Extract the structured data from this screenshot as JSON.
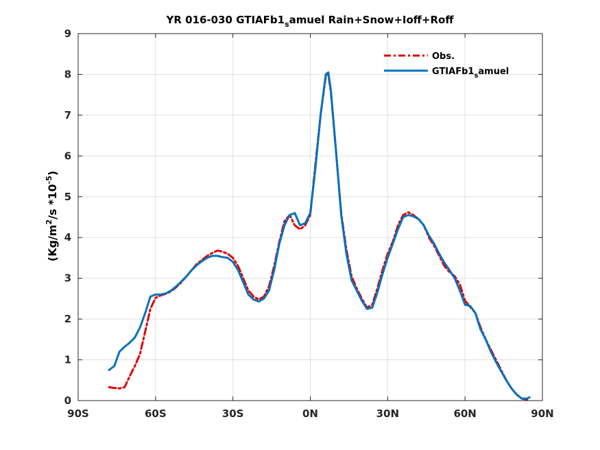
{
  "chart_data": {
    "type": "line",
    "title_main": "YR 016-030 GTIAFb1",
    "title_sub": "s",
    "title_rest": "amuel  Rain+Snow+Ioff+Roff",
    "ylabel_prefix": "(Kg/m",
    "ylabel_sup1": "2",
    "ylabel_mid": "/s *10",
    "ylabel_sup2": "-5",
    "ylabel_suffix": ")",
    "xlim": [
      -90,
      90
    ],
    "ylim": [
      0,
      9
    ],
    "xticks": [
      -90,
      -60,
      -30,
      0,
      30,
      60,
      90
    ],
    "xtick_labels": [
      "90S",
      "60S",
      "30S",
      "0N",
      "30N",
      "60N",
      "90N"
    ],
    "yticks": [
      0,
      1,
      2,
      3,
      4,
      5,
      6,
      7,
      8,
      9
    ],
    "ytick_labels": [
      "0",
      "1",
      "2",
      "3",
      "4",
      "5",
      "6",
      "7",
      "8",
      "9"
    ],
    "grid": true,
    "legend_position": "top-right",
    "series": [
      {
        "name": "Obs.",
        "color": "#e00000",
        "style": "dashdot",
        "x": [
          -78,
          -76,
          -74,
          -72,
          -70,
          -68,
          -66,
          -64,
          -62,
          -60,
          -58,
          -56,
          -54,
          -52,
          -50,
          -48,
          -46,
          -44,
          -42,
          -40,
          -38,
          -36,
          -34,
          -32,
          -30,
          -28,
          -26,
          -24,
          -22,
          -20,
          -18,
          -16,
          -14,
          -12,
          -10,
          -8,
          -6,
          -4,
          -2,
          0,
          2,
          4,
          6,
          7,
          8,
          10,
          12,
          14,
          16,
          18,
          20,
          22,
          24,
          26,
          28,
          30,
          32,
          34,
          36,
          38,
          40,
          42,
          44,
          46,
          48,
          50,
          52,
          54,
          56,
          58,
          60,
          62,
          64,
          66,
          68,
          70,
          72,
          74,
          76,
          78,
          80,
          82,
          84,
          85
        ],
        "y": [
          0.33,
          0.31,
          0.3,
          0.33,
          0.6,
          0.85,
          1.15,
          1.7,
          2.25,
          2.52,
          2.58,
          2.62,
          2.68,
          2.78,
          2.9,
          3.05,
          3.2,
          3.35,
          3.45,
          3.55,
          3.62,
          3.68,
          3.65,
          3.6,
          3.5,
          3.3,
          3.0,
          2.7,
          2.55,
          2.48,
          2.55,
          2.8,
          3.3,
          3.9,
          4.4,
          4.55,
          4.3,
          4.2,
          4.3,
          4.55,
          5.8,
          7.0,
          7.95,
          8.0,
          7.55,
          6.1,
          4.6,
          3.7,
          3.05,
          2.75,
          2.5,
          2.28,
          2.35,
          2.75,
          3.2,
          3.6,
          3.9,
          4.3,
          4.55,
          4.62,
          4.55,
          4.45,
          4.3,
          4.0,
          3.8,
          3.55,
          3.3,
          3.15,
          3.05,
          2.85,
          2.45,
          2.3,
          2.15,
          1.8,
          1.5,
          1.25,
          1.0,
          0.75,
          0.5,
          0.3,
          0.15,
          0.05,
          0.02,
          0.05
        ]
      },
      {
        "name": "GTIAFb1",
        "name_sub": "s",
        "name_rest": "amuel",
        "color": "#0072bd",
        "style": "solid",
        "x": [
          -78,
          -76,
          -74,
          -72,
          -70,
          -68,
          -66,
          -64,
          -62,
          -60,
          -58,
          -56,
          -54,
          -52,
          -50,
          -48,
          -46,
          -44,
          -42,
          -40,
          -38,
          -36,
          -34,
          -32,
          -30,
          -28,
          -26,
          -24,
          -22,
          -20,
          -18,
          -16,
          -14,
          -12,
          -10,
          -8,
          -6,
          -4,
          -2,
          0,
          2,
          4,
          6,
          7,
          8,
          10,
          12,
          14,
          16,
          18,
          20,
          22,
          24,
          26,
          28,
          30,
          32,
          34,
          36,
          38,
          40,
          42,
          44,
          46,
          48,
          50,
          52,
          54,
          56,
          58,
          60,
          62,
          64,
          66,
          68,
          70,
          72,
          74,
          76,
          78,
          80,
          82,
          84,
          85
        ],
        "y": [
          0.75,
          0.85,
          1.2,
          1.32,
          1.42,
          1.55,
          1.8,
          2.15,
          2.55,
          2.6,
          2.6,
          2.63,
          2.7,
          2.8,
          2.92,
          3.05,
          3.2,
          3.32,
          3.42,
          3.5,
          3.55,
          3.55,
          3.52,
          3.5,
          3.4,
          3.2,
          2.9,
          2.6,
          2.48,
          2.43,
          2.5,
          2.7,
          3.2,
          3.85,
          4.3,
          4.55,
          4.6,
          4.3,
          4.35,
          4.6,
          5.7,
          7.0,
          8.0,
          8.05,
          7.6,
          6.1,
          4.55,
          3.6,
          2.95,
          2.7,
          2.45,
          2.25,
          2.28,
          2.65,
          3.1,
          3.5,
          3.85,
          4.2,
          4.5,
          4.55,
          4.52,
          4.45,
          4.3,
          4.05,
          3.85,
          3.6,
          3.38,
          3.2,
          3.0,
          2.7,
          2.35,
          2.32,
          2.15,
          1.75,
          1.5,
          1.2,
          0.95,
          0.72,
          0.5,
          0.3,
          0.15,
          0.05,
          0.05,
          0.08
        ]
      }
    ]
  }
}
